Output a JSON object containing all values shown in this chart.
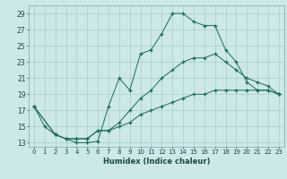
{
  "xlabel": "Humidex (Indice chaleur)",
  "bg_color": "#cce8e8",
  "grid_color": "#aacccc",
  "line_color": "#1a6b5a",
  "marker": "+",
  "xmin": -0.5,
  "xmax": 23.5,
  "ymin": 12.5,
  "ymax": 30,
  "yticks": [
    13,
    15,
    17,
    19,
    21,
    23,
    25,
    27,
    29
  ],
  "xticks": [
    0,
    1,
    2,
    3,
    4,
    5,
    6,
    7,
    8,
    9,
    10,
    11,
    12,
    13,
    14,
    15,
    16,
    17,
    18,
    19,
    20,
    21,
    22,
    23
  ],
  "line1_x": [
    0,
    1,
    2,
    3,
    4,
    5,
    6,
    7,
    8,
    9,
    10,
    11,
    12,
    13,
    14,
    15,
    16,
    17,
    18,
    19,
    20,
    21,
    22,
    23
  ],
  "line1_y": [
    17.5,
    15,
    14,
    13.5,
    13.0,
    13.0,
    13.2,
    17.5,
    21.0,
    19.5,
    24.0,
    24.5,
    26.5,
    29.0,
    29.0,
    28.0,
    27.5,
    27.5,
    24.5,
    23.0,
    20.5,
    19.5,
    19.5,
    19.0
  ],
  "line2_x": [
    0,
    2,
    3,
    4,
    5,
    6,
    7,
    8,
    9,
    10,
    11,
    12,
    13,
    14,
    15,
    16,
    17,
    18,
    19,
    20,
    21,
    22,
    23
  ],
  "line2_y": [
    17.5,
    14.0,
    13.5,
    13.5,
    13.5,
    14.5,
    14.5,
    15.5,
    17.0,
    18.5,
    19.5,
    21.0,
    22.0,
    23.0,
    23.5,
    23.5,
    24.0,
    23.0,
    22.0,
    21.0,
    20.5,
    20.0,
    19.0
  ],
  "line3_x": [
    0,
    2,
    3,
    4,
    5,
    6,
    7,
    8,
    9,
    10,
    11,
    12,
    13,
    14,
    15,
    16,
    17,
    18,
    19,
    20,
    21,
    22,
    23
  ],
  "line3_y": [
    17.5,
    14.0,
    13.5,
    13.5,
    13.5,
    14.5,
    14.5,
    15.0,
    15.5,
    16.5,
    17.0,
    17.5,
    18.0,
    18.5,
    19.0,
    19.0,
    19.5,
    19.5,
    19.5,
    19.5,
    19.5,
    19.5,
    19.0
  ]
}
